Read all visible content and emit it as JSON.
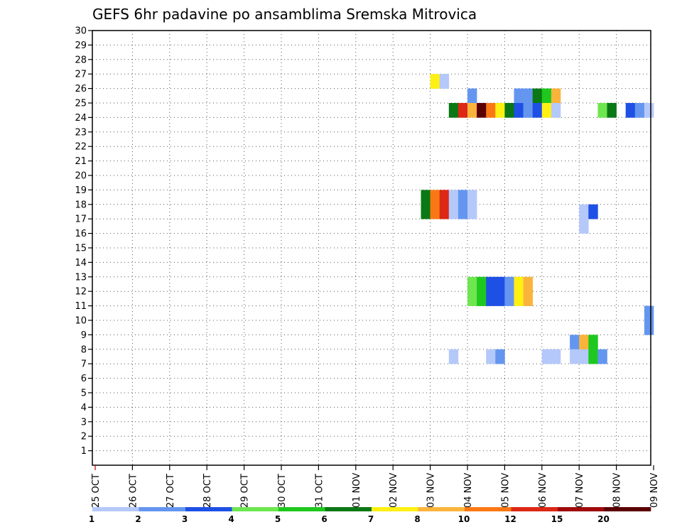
{
  "chart_data": {
    "type": "heatmap",
    "title": "GEFS 6hr padavine po ansamblima Sremska Mitrovica",
    "xlabel": "",
    "ylabel": "",
    "x_tick_labels": [
      "25 OCT",
      "26 OCT",
      "27 OCT",
      "28 OCT",
      "29 OCT",
      "30 OCT",
      "31 OCT",
      "01 NOV",
      "02 NOV",
      "03 NOV",
      "04 NOV",
      "05 NOV",
      "06 NOV",
      "07 NOV",
      "08 NOV",
      "09 NOV"
    ],
    "y_tick_labels": [
      "1",
      "2",
      "3",
      "4",
      "5",
      "6",
      "7",
      "8",
      "9",
      "10",
      "11",
      "12",
      "13",
      "14",
      "15",
      "16",
      "17",
      "18",
      "19",
      "20",
      "21",
      "22",
      "23",
      "24",
      "25",
      "26",
      "27",
      "28",
      "29",
      "30"
    ],
    "y_range": [
      0,
      30
    ],
    "x_unit": "6-hour step from 25 OCT 00Z",
    "grid": true,
    "legend_position": "bottom",
    "legend_thresholds": [
      "1",
      "2",
      "3",
      "4",
      "5",
      "6",
      "7",
      "8",
      "10",
      "12",
      "15",
      "20"
    ],
    "legend_colors": [
      "#b4c8fa",
      "#6496f0",
      "#1e50e6",
      "#6ee650",
      "#1ec81e",
      "#0a7814",
      "#fff014",
      "#fab43c",
      "#fa7814",
      "#dc2814",
      "#a00a0a",
      "#5a0000"
    ],
    "cells": [
      {
        "y": 27,
        "x": [
          36,
          37
        ],
        "c": [
          6,
          0
        ]
      },
      {
        "y": 26,
        "x": [
          40,
          45,
          46,
          47,
          48,
          49
        ],
        "c": [
          1,
          1,
          1,
          5,
          4,
          7
        ]
      },
      {
        "y": 25,
        "x": [
          38,
          39,
          40,
          41,
          42,
          43,
          44,
          45,
          46,
          47,
          48,
          49,
          54,
          55,
          57,
          58,
          59
        ],
        "c": [
          5,
          9,
          7,
          11,
          8,
          6,
          5,
          2,
          1,
          2,
          6,
          0,
          3,
          5,
          2,
          1,
          0
        ]
      },
      {
        "y": 19,
        "x": [
          35,
          36,
          37,
          38,
          39,
          40
        ],
        "c": [
          5,
          8,
          9,
          0,
          1,
          0
        ]
      },
      {
        "y": 18,
        "x": [
          35,
          36,
          37,
          38,
          39,
          40,
          52,
          53
        ],
        "c": [
          5,
          8,
          9,
          0,
          1,
          0,
          0,
          2
        ]
      },
      {
        "y": 17,
        "x": [
          52
        ],
        "c": [
          0
        ]
      },
      {
        "y": 13,
        "x": [
          40,
          41,
          42,
          43,
          44,
          45,
          46
        ],
        "c": [
          3,
          4,
          2,
          2,
          1,
          6,
          7
        ]
      },
      {
        "y": 12,
        "x": [
          40,
          41,
          42,
          43,
          44,
          45,
          46
        ],
        "c": [
          3,
          4,
          2,
          2,
          1,
          6,
          7
        ]
      },
      {
        "y": 11,
        "x": [
          59
        ],
        "c": [
          1
        ]
      },
      {
        "y": 10,
        "x": [
          59
        ],
        "c": [
          1
        ]
      },
      {
        "y": 9,
        "x": [
          51,
          52,
          53
        ],
        "c": [
          1,
          7,
          4
        ]
      },
      {
        "y": 8,
        "x": [
          38,
          42,
          43,
          48,
          49,
          51,
          52,
          53,
          54
        ],
        "c": [
          0,
          0,
          1,
          0,
          0,
          0,
          0,
          4,
          1
        ]
      }
    ]
  }
}
